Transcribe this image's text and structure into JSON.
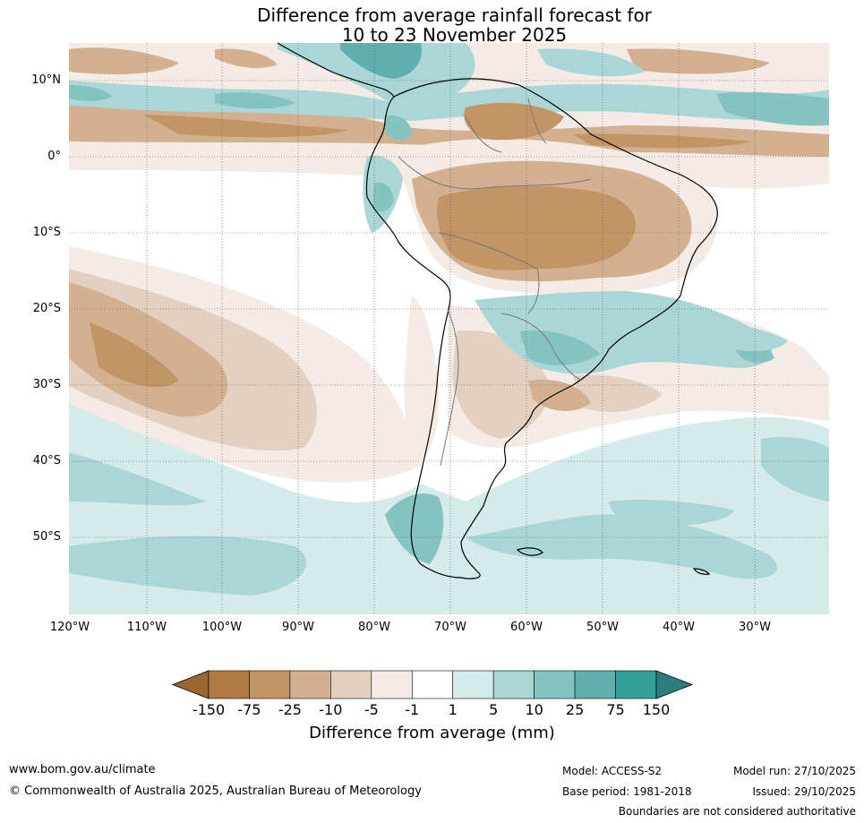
{
  "title": {
    "line1": "Difference from average rainfall forecast for",
    "line2": "10 to 23 November 2025"
  },
  "map": {
    "region": "South America and surrounding oceans",
    "lat_labels": [
      "10°N",
      "0°",
      "10°S",
      "20°S",
      "30°S",
      "40°S",
      "50°S"
    ],
    "lon_labels": [
      "120°W",
      "110°W",
      "100°W",
      "90°W",
      "80°W",
      "70°W",
      "60°W",
      "50°W",
      "40°W",
      "30°W"
    ]
  },
  "colorbar": {
    "title": "Difference from average (mm)",
    "tick_labels": [
      "-150",
      "-75",
      "-25",
      "-10",
      "-5",
      "-1",
      "1",
      "5",
      "10",
      "25",
      "75",
      "150"
    ],
    "colors": [
      "#9c6632",
      "#b07a42",
      "#c39466",
      "#d2b090",
      "#e4d0c0",
      "#f4ebe6",
      "#ffffff",
      "#d5ebea",
      "#aad6d5",
      "#85c3c2",
      "#5eafae",
      "#34a09a",
      "#2a7f7c"
    ]
  },
  "footer": {
    "url": "www.bom.gov.au/climate",
    "copyright": "© Commonwealth of Australia 2025, Australian Bureau of Meteorology",
    "model": "Model: ACCESS-S2",
    "base_period": "Base period: 1981-2018",
    "model_run": "Model run: 27/10/2025",
    "issued": "Issued: 29/10/2025",
    "disclaimer": "Boundaries are not considered authoritative"
  }
}
